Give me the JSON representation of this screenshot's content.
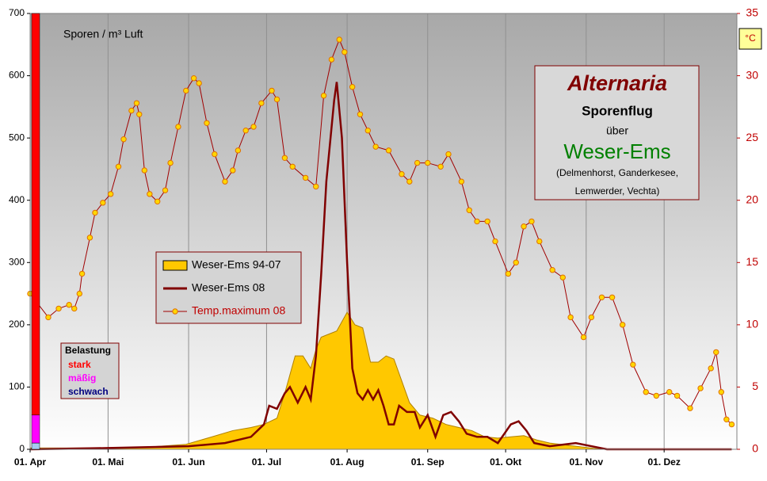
{
  "chart_data": {
    "type": "line",
    "title": "Alternaria",
    "subtitle": "Sporenflug",
    "connector": "über",
    "region": "Weser-Ems",
    "locations": [
      "(Delmenhorst, Ganderkesee,",
      "Lemwerder, Vechta)"
    ],
    "ylabel": "Sporen / m³ Luft",
    "y2label": "°C",
    "xlim": [
      0,
      272
    ],
    "xticks": [
      {
        "value": 0,
        "label": "01. Apr"
      },
      {
        "value": 30,
        "label": "01. Mai"
      },
      {
        "value": 61,
        "label": "01. Jun"
      },
      {
        "value": 91,
        "label": "01. Jul"
      },
      {
        "value": 122,
        "label": "01. Aug"
      },
      {
        "value": 153,
        "label": "01. Sep"
      },
      {
        "value": 183,
        "label": "01. Okt"
      },
      {
        "value": 214,
        "label": "01. Nov"
      },
      {
        "value": 244,
        "label": "01. Dez"
      }
    ],
    "ylim": [
      0,
      700
    ],
    "yticks": [
      0,
      100,
      200,
      300,
      400,
      500,
      600,
      700
    ],
    "y2lim": [
      0,
      35
    ],
    "y2ticks": [
      0,
      5,
      10,
      15,
      20,
      25,
      30,
      35
    ],
    "grid": "x",
    "belastung": {
      "title": "Belastung",
      "levels": [
        {
          "name": "stark",
          "color": "#ff0000",
          "range": [
            55,
            700
          ]
        },
        {
          "name": "mäßig",
          "color": "#ff00ff",
          "range": [
            10,
            55
          ]
        },
        {
          "name": "schwach",
          "color": "#000080",
          "bar_color": "#a6caf0",
          "range": [
            0,
            10
          ]
        }
      ]
    },
    "series": [
      {
        "name": "Weser-Ems 94-07",
        "kind": "area",
        "color": "#ffc800",
        "x": [
          0,
          40,
          50,
          60,
          70,
          78,
          85,
          90,
          95,
          98,
          100,
          102,
          105,
          108,
          110,
          112,
          115,
          118,
          122,
          125,
          128,
          131,
          134,
          137,
          140,
          143,
          146,
          150,
          155,
          160,
          165,
          170,
          175,
          180,
          185,
          190,
          195,
          200,
          210,
          220,
          270
        ],
        "values": [
          2,
          2,
          5,
          8,
          20,
          30,
          35,
          40,
          50,
          90,
          120,
          150,
          150,
          130,
          160,
          180,
          185,
          190,
          220,
          200,
          195,
          140,
          140,
          150,
          145,
          110,
          75,
          55,
          50,
          40,
          35,
          30,
          20,
          18,
          20,
          22,
          15,
          10,
          5,
          0,
          0
        ]
      },
      {
        "name": "Weser-Ems 08",
        "kind": "line",
        "color": "#800000",
        "x": [
          0,
          30,
          61,
          75,
          85,
          90,
          92,
          95,
          98,
          100,
          103,
          106,
          108,
          110,
          112,
          114,
          117,
          118,
          120,
          122,
          124,
          126,
          128,
          130,
          132,
          134,
          136,
          138,
          140,
          142,
          145,
          148,
          150,
          153,
          156,
          159,
          162,
          165,
          168,
          172,
          176,
          180,
          185,
          188,
          191,
          194,
          200,
          210,
          216,
          222,
          270
        ],
        "values": [
          0,
          2,
          5,
          10,
          20,
          40,
          70,
          65,
          90,
          100,
          75,
          100,
          80,
          150,
          280,
          430,
          560,
          590,
          500,
          300,
          130,
          90,
          80,
          95,
          80,
          95,
          70,
          40,
          40,
          70,
          60,
          60,
          35,
          55,
          20,
          55,
          60,
          45,
          25,
          20,
          20,
          10,
          40,
          45,
          30,
          10,
          5,
          10,
          5,
          0,
          0
        ]
      },
      {
        "name": "Temp.maximum 08",
        "kind": "marker-line",
        "color": "#a00000",
        "marker": "#ffd700",
        "axis": "y2",
        "x": [
          0,
          7,
          11,
          15,
          17,
          19,
          20,
          23,
          25,
          28,
          31,
          34,
          36,
          39,
          41,
          42,
          44,
          46,
          49,
          52,
          54,
          57,
          60,
          63,
          65,
          68,
          71,
          75,
          78,
          80,
          83,
          86,
          89,
          93,
          95,
          98,
          101,
          106,
          110,
          113,
          116,
          119,
          121,
          124,
          127,
          130,
          133,
          138,
          143,
          146,
          149,
          153,
          158,
          161,
          166,
          169,
          172,
          176,
          179,
          184,
          187,
          190,
          193,
          196,
          201,
          205,
          208,
          213,
          216,
          220,
          224,
          228,
          232,
          237,
          241,
          246,
          249,
          254,
          258,
          262,
          264,
          266,
          268,
          270
        ],
        "values": [
          12.5,
          10.6,
          11.3,
          11.6,
          11.3,
          12.5,
          14.1,
          17,
          19,
          19.8,
          20.5,
          22.7,
          24.9,
          27.2,
          27.8,
          26.9,
          22.4,
          20.5,
          19.9,
          20.8,
          23,
          25.9,
          28.8,
          29.8,
          29.4,
          26.2,
          23.7,
          21.5,
          22.4,
          24,
          25.6,
          25.9,
          27.8,
          28.8,
          28.1,
          23.4,
          22.7,
          21.8,
          21.1,
          28.4,
          31.3,
          32.9,
          31.9,
          29.1,
          26.9,
          25.6,
          24.3,
          24,
          22.1,
          21.5,
          23,
          23,
          22.7,
          23.7,
          21.5,
          19.2,
          18.3,
          18.3,
          16.7,
          14.1,
          15,
          17.9,
          18.3,
          16.7,
          14.4,
          13.8,
          10.6,
          9,
          10.6,
          12.2,
          12.2,
          10,
          6.8,
          4.6,
          4.3,
          4.6,
          4.3,
          3.3,
          4.9,
          6.5,
          7.8,
          4.6,
          2.4,
          2
        ]
      }
    ]
  }
}
